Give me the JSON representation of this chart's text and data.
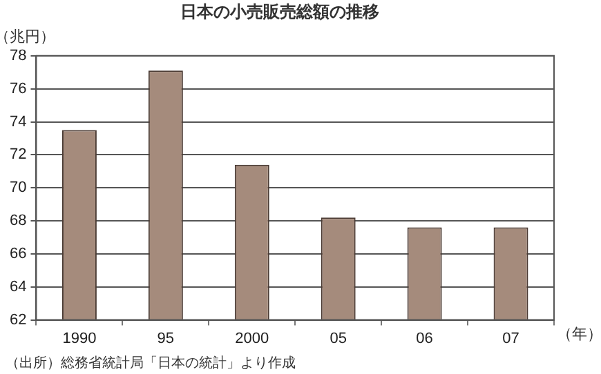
{
  "chart_data": {
    "type": "bar",
    "title": "日本の小売販売総額の推移",
    "ylabel": "（兆円）",
    "xlabel": "（年）",
    "categories": [
      "1990",
      "95",
      "2000",
      "05",
      "06",
      "07"
    ],
    "values": [
      73.5,
      77.1,
      71.4,
      68.2,
      67.6,
      67.6
    ],
    "color": "#a58b7c",
    "ylim": [
      62,
      78
    ],
    "yticks": [
      62,
      64,
      66,
      68,
      70,
      72,
      74,
      76,
      78
    ],
    "grid": "y",
    "annotations": [
      "（出所）総務省統計局「日本の統計」より作成"
    ]
  }
}
